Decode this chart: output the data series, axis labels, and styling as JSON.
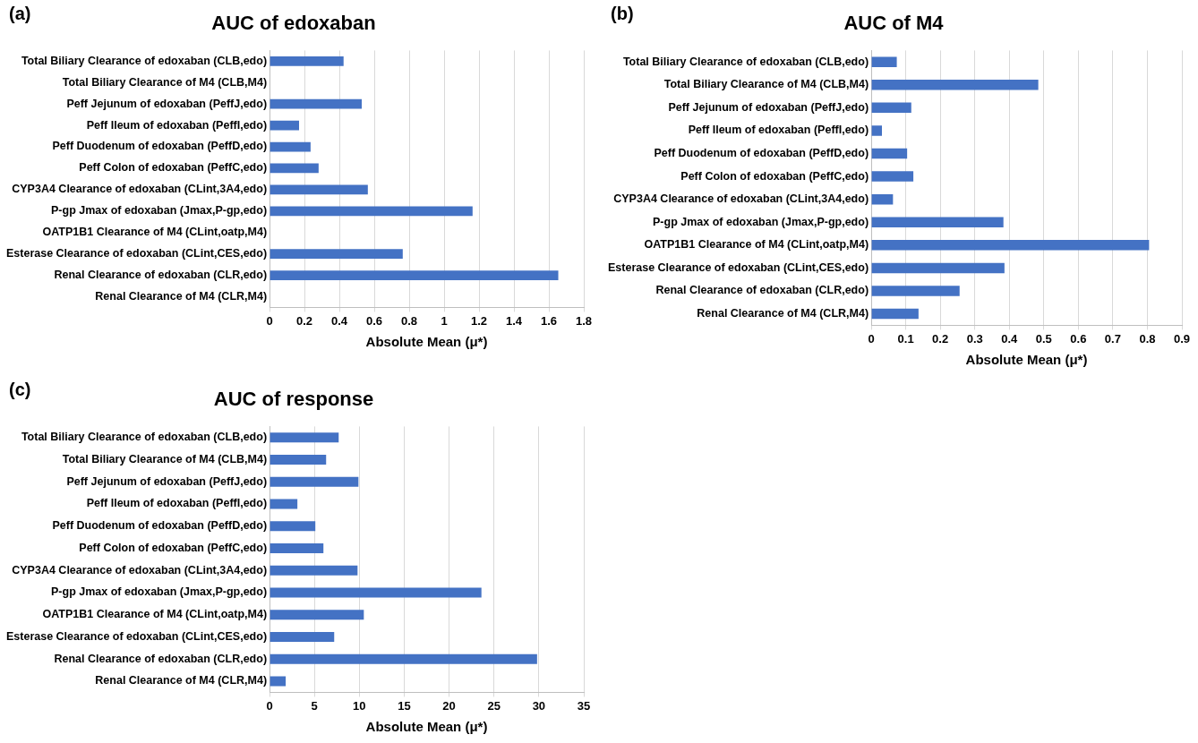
{
  "chart_data": [
    {
      "type": "bar",
      "orientation": "horizontal",
      "title": "AUC of edoxaban",
      "xlabel": "Absolute Mean (μ*)",
      "annotations": [
        "(a)"
      ],
      "categories": [
        "Total Biliary Clearance of edoxaban (CLB,edo)",
        "Total Biliary Clearance of M4 (CLB,M4)",
        "Peff Jejunum of edoxaban (PeffJ,edo)",
        "Peff Ileum of edoxaban (PeffI,edo)",
        "Peff Duodenum of edoxaban (PeffD,edo)",
        "Peff Colon of edoxaban (PeffC,edo)",
        "CYP3A4 Clearance of edoxaban (CLint,3A4,edo)",
        "P-gp Jmax of edoxaban (Jmax,P-gp,edo)",
        "OATP1B1 Clearance of M4 (CLint,oatp,M4)",
        "Esterase Clearance of edoxaban (CLint,CES,edo)",
        "Renal Clearance of edoxaban (CLR,edo)",
        "Renal Clearance of M4 (CLR,M4)"
      ],
      "values": [
        0.424,
        0,
        0.528,
        0.169,
        0.235,
        0.281,
        0.563,
        1.163,
        0,
        0.763,
        1.654,
        0
      ],
      "color": "#4472c4",
      "xlim": [
        0,
        1.8
      ],
      "xticks": [
        0,
        {
          "value": 0.2,
          "label": "0.2"
        },
        {
          "value": 0.4,
          "label": "0.4"
        },
        {
          "value": 0.6,
          "label": "0.6"
        },
        {
          "value": 0.8,
          "label": "0.8"
        },
        1,
        {
          "value": 1.2,
          "label": "1.2"
        },
        {
          "value": 1.4,
          "label": "1.4"
        },
        {
          "value": 1.6,
          "label": "1.6"
        },
        {
          "value": 1.8,
          "label": "1.8"
        }
      ],
      "grid": "x",
      "legend": false
    },
    {
      "type": "bar",
      "orientation": "horizontal",
      "title": "AUC of M4",
      "xlabel": "Absolute Mean (μ*)",
      "annotations": [
        "(b)"
      ],
      "categories": [
        "Total Biliary Clearance of edoxaban (CLB,edo)",
        "Total Biliary Clearance of M4 (CLB,M4)",
        "Peff Jejunum of edoxaban (PeffJ,edo)",
        "Peff Ileum of edoxaban (PeffI,edo)",
        "Peff Duodenum of edoxaban (PeffD,edo)",
        "Peff Colon of edoxaban (PeffC,edo)",
        "CYP3A4 Clearance of edoxaban (CLint,3A4,edo)",
        "P-gp Jmax of edoxaban (Jmax,P-gp,edo)",
        "OATP1B1 Clearance of M4 (CLint,oatp,M4)",
        "Esterase Clearance of edoxaban (CLint,CES,edo)",
        "Renal Clearance of edoxaban (CLR,edo)",
        "Renal Clearance of M4 (CLR,M4)"
      ],
      "values": [
        0.074,
        0.484,
        0.116,
        0.031,
        0.104,
        0.122,
        0.063,
        0.383,
        0.805,
        0.386,
        0.256,
        0.137
      ],
      "color": "#4472c4",
      "xlim": [
        0,
        0.9
      ],
      "xticks": [
        0,
        {
          "value": 0.1,
          "label": "0.1"
        },
        {
          "value": 0.2,
          "label": "0.2"
        },
        {
          "value": 0.3,
          "label": "0.3"
        },
        {
          "value": 0.4,
          "label": "0.4"
        },
        {
          "value": 0.5,
          "label": "0.5"
        },
        {
          "value": 0.6,
          "label": "0.6"
        },
        {
          "value": 0.7,
          "label": "0.7"
        },
        {
          "value": 0.8,
          "label": "0.8"
        },
        {
          "value": 0.9,
          "label": "0.9"
        }
      ],
      "grid": "x",
      "legend": false
    },
    {
      "type": "bar",
      "orientation": "horizontal",
      "title": "AUC of response",
      "xlabel": "Absolute Mean (μ*)",
      "annotations": [
        "(c)"
      ],
      "categories": [
        "Total Biliary Clearance of edoxaban (CLB,edo)",
        "Total Biliary Clearance of M4 (CLB,M4)",
        "Peff Jejunum of edoxaban (PeffJ,edo)",
        "Peff Ileum of edoxaban (PeffI,edo)",
        "Peff Duodenum of edoxaban (PeffD,edo)",
        "Peff Colon of edoxaban (PeffC,edo)",
        "CYP3A4 Clearance of edoxaban (CLint,3A4,edo)",
        "P-gp Jmax of edoxaban (Jmax,P-gp,edo)",
        "OATP1B1 Clearance of M4 (CLint,oatp,M4)",
        "Esterase Clearance of edoxaban (CLint,CES,edo)",
        "Renal Clearance of edoxaban (CLR,edo)",
        "Renal Clearance of M4 (CLR,M4)"
      ],
      "values": [
        7.7,
        6.3,
        9.9,
        3.1,
        5.1,
        6.0,
        9.8,
        23.6,
        10.5,
        7.2,
        29.8,
        1.8
      ],
      "color": "#4472c4",
      "xlim": [
        0,
        35
      ],
      "xticks": [
        0,
        5,
        10,
        15,
        20,
        25,
        30,
        35
      ],
      "grid": "x",
      "legend": false
    }
  ]
}
